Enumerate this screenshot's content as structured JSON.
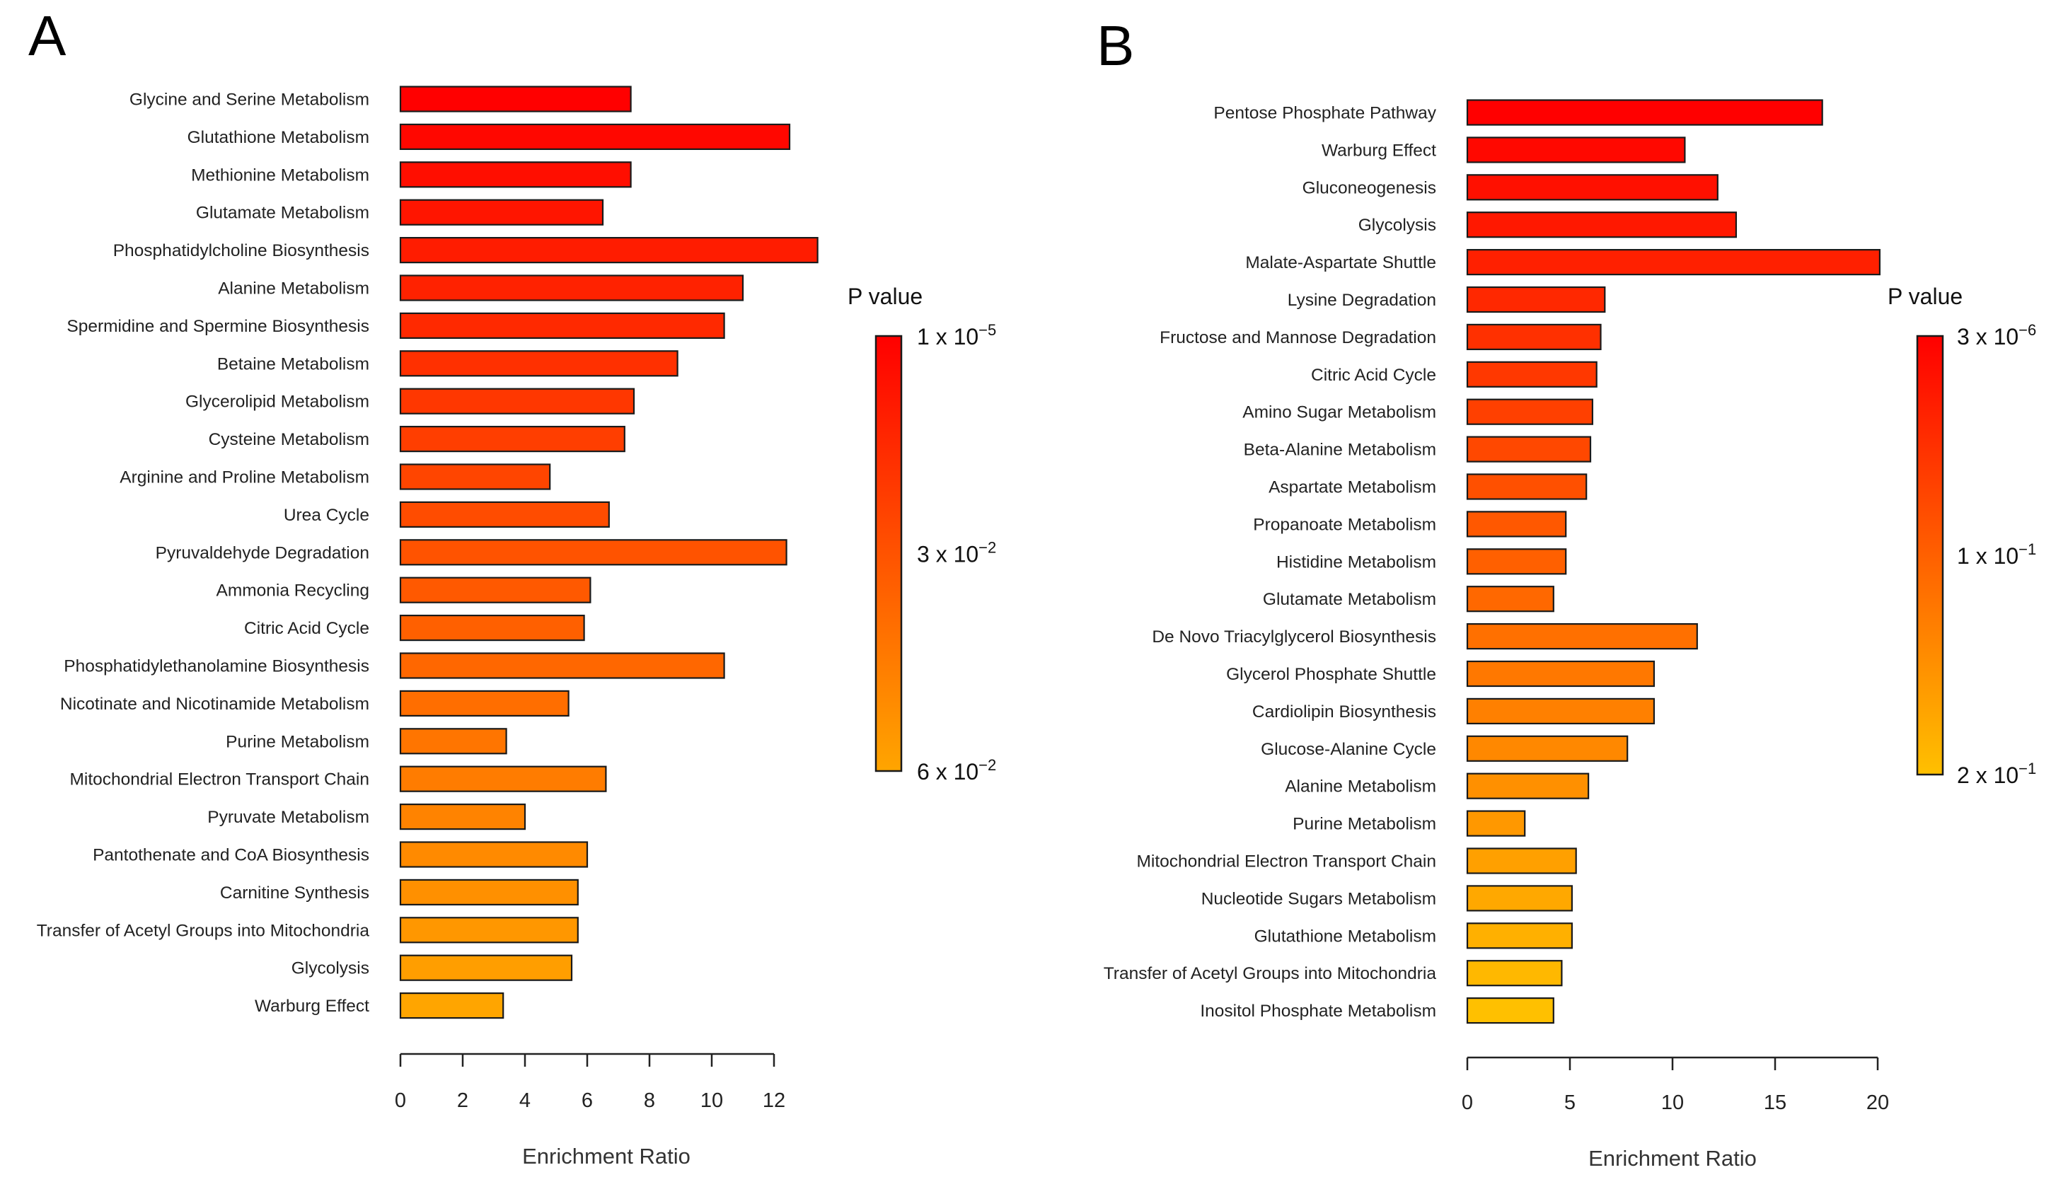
{
  "chart_data": [
    {
      "panel": "A",
      "type": "bar",
      "orientation": "horizontal",
      "xlabel": "Enrichment Ratio",
      "xlim": [
        0,
        12.5
      ],
      "xticks": [
        0,
        2,
        4,
        6,
        8,
        10,
        12
      ],
      "categories": [
        "Glycine and Serine Metabolism",
        "Glutathione Metabolism",
        "Methionine Metabolism",
        "Glutamate Metabolism",
        "Phosphatidylcholine Biosynthesis",
        "Alanine Metabolism",
        "Spermidine and Spermine Biosynthesis",
        "Betaine Metabolism",
        "Glycerolipid Metabolism",
        "Cysteine Metabolism",
        "Arginine and Proline Metabolism",
        "Urea Cycle",
        "Pyruvaldehyde Degradation",
        "Ammonia Recycling",
        "Citric Acid Cycle",
        "Phosphatidylethanolamine Biosynthesis",
        "Nicotinate and Nicotinamide Metabolism",
        "Purine Metabolism",
        "Mitochondrial Electron Transport Chain",
        "Pyruvate Metabolism",
        "Pantothenate and CoA Biosynthesis",
        "Carnitine Synthesis",
        "Transfer of Acetyl Groups into Mitochondria",
        "Glycolysis",
        "Warburg Effect"
      ],
      "values": [
        7.4,
        12.5,
        7.4,
        6.5,
        13.4,
        11.0,
        10.4,
        8.9,
        7.5,
        7.2,
        4.8,
        6.7,
        12.4,
        6.1,
        5.9,
        10.4,
        5.4,
        3.4,
        6.6,
        4.0,
        6.0,
        5.7,
        5.7,
        5.5,
        3.3
      ],
      "legend": {
        "title": "P value",
        "labels": [
          {
            "mantissa": "1 x 10",
            "exponent": "−5"
          },
          {
            "mantissa": "3 x 10",
            "exponent": "−2"
          },
          {
            "mantissa": "6 x 10",
            "exponent": "−2"
          }
        ],
        "color_high": "#ff0000",
        "color_low": "#ffa500"
      }
    },
    {
      "panel": "B",
      "type": "bar",
      "orientation": "horizontal",
      "xlabel": "Enrichment Ratio",
      "xlim": [
        0,
        20
      ],
      "xticks": [
        0,
        5,
        10,
        15,
        20
      ],
      "categories": [
        "Pentose Phosphate Pathway",
        "Warburg Effect",
        "Gluconeogenesis",
        "Glycolysis",
        "Malate-Aspartate Shuttle",
        "Lysine Degradation",
        "Fructose and Mannose Degradation",
        "Citric Acid Cycle",
        "Amino Sugar Metabolism",
        "Beta-Alanine Metabolism",
        "Aspartate Metabolism",
        "Propanoate Metabolism",
        "Histidine Metabolism",
        "Glutamate Metabolism",
        "De Novo Triacylglycerol Biosynthesis",
        "Glycerol Phosphate Shuttle",
        "Cardiolipin Biosynthesis",
        "Glucose-Alanine Cycle",
        "Alanine Metabolism",
        "Purine Metabolism",
        "Mitochondrial Electron Transport Chain",
        "Nucleotide Sugars Metabolism",
        "Glutathione Metabolism",
        "Transfer of Acetyl Groups into Mitochondria",
        "Inositol Phosphate Metabolism"
      ],
      "values": [
        17.3,
        10.6,
        12.2,
        13.1,
        20.1,
        6.7,
        6.5,
        6.3,
        6.1,
        6.0,
        5.8,
        4.8,
        4.8,
        4.2,
        11.2,
        9.1,
        9.1,
        7.8,
        5.9,
        2.8,
        5.3,
        5.1,
        5.1,
        4.6,
        4.2
      ],
      "legend": {
        "title": "P value",
        "labels": [
          {
            "mantissa": "3 x 10",
            "exponent": "−6"
          },
          {
            "mantissa": "1 x 10",
            "exponent": "−1"
          },
          {
            "mantissa": "2 x 10",
            "exponent": "−1"
          }
        ],
        "color_high": "#ff0000",
        "color_low": "#ffc000"
      }
    }
  ]
}
